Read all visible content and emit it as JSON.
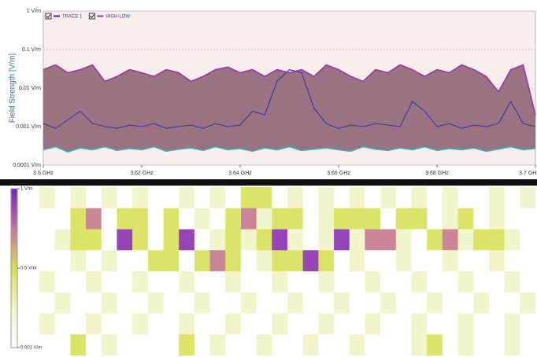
{
  "chart_data": [
    {
      "type": "line",
      "y_label": "Field Strength [V/m]",
      "log_y": true,
      "grid": true,
      "xlim": [
        3.6,
        3.7
      ],
      "xticks": [
        {
          "value": 3.6,
          "label": "3.6 GHz"
        },
        {
          "value": 3.62,
          "label": "3.62 GHz"
        },
        {
          "value": 3.64,
          "label": "3.64 GHz"
        },
        {
          "value": 3.66,
          "label": "3.66 GHz"
        },
        {
          "value": 3.68,
          "label": "3.68 GHz"
        },
        {
          "value": 3.7,
          "label": "3.7 GHz"
        }
      ],
      "ylim": [
        0.0001,
        1
      ],
      "yticks": [
        {
          "value": 1,
          "label": "1 V/m"
        },
        {
          "value": 0.1,
          "label": "0.1 V/m"
        },
        {
          "value": 0.01,
          "label": "0.01 V/m"
        },
        {
          "value": 0.001,
          "label": "0.001 V/m"
        },
        {
          "value": 0.0001,
          "label": "0.0001 V/m"
        }
      ],
      "x": [
        3.6,
        3.6025,
        3.605,
        3.6075,
        3.61,
        3.6125,
        3.615,
        3.6175,
        3.62,
        3.6225,
        3.625,
        3.6275,
        3.63,
        3.6325,
        3.635,
        3.6375,
        3.64,
        3.6425,
        3.645,
        3.6475,
        3.65,
        3.6525,
        3.655,
        3.6575,
        3.66,
        3.6625,
        3.665,
        3.6675,
        3.67,
        3.6725,
        3.675,
        3.6775,
        3.68,
        3.6825,
        3.685,
        3.6875,
        3.69,
        3.6925,
        3.695,
        3.6975,
        3.7
      ],
      "series": [
        {
          "name": "TRACE 1",
          "color": "#2f2fa8",
          "values": [
            0.0012,
            0.0009,
            0.0015,
            0.0025,
            0.0012,
            0.001,
            0.0009,
            0.0011,
            0.001,
            0.0012,
            0.0009,
            0.001,
            0.0011,
            0.0009,
            0.0012,
            0.001,
            0.0011,
            0.0025,
            0.002,
            0.015,
            0.03,
            0.025,
            0.003,
            0.0012,
            0.0009,
            0.0011,
            0.001,
            0.0012,
            0.0011,
            0.001,
            0.0045,
            0.0025,
            0.001,
            0.0012,
            0.0009,
            0.0011,
            0.001,
            0.0012,
            0.0045,
            0.0012,
            0.001
          ]
        },
        {
          "name": "HIGH-LOW",
          "color": "#9a2fa8",
          "low_color": "#2fb5b5",
          "fill": "#7a4a5e",
          "values": [
            0.03,
            0.04,
            0.025,
            0.03,
            0.04,
            0.015,
            0.02,
            0.03,
            0.025,
            0.02,
            0.03,
            0.025,
            0.015,
            0.02,
            0.03,
            0.035,
            0.025,
            0.03,
            0.02,
            0.03,
            0.025,
            0.03,
            0.02,
            0.04,
            0.03,
            0.02,
            0.015,
            0.03,
            0.025,
            0.04,
            0.03,
            0.02,
            0.03,
            0.025,
            0.04,
            0.03,
            0.02,
            0.008,
            0.03,
            0.04,
            0.002
          ],
          "low": [
            0.00025,
            0.0003,
            0.00022,
            0.00028,
            0.00025,
            0.0003,
            0.00024,
            0.00027,
            0.00025,
            0.0003,
            0.00023,
            0.00026,
            0.00028,
            0.00024,
            0.0003,
            0.00025,
            0.00027,
            0.00023,
            0.00028,
            0.00025,
            0.0003,
            0.00024,
            0.00026,
            0.00028,
            0.00025,
            0.00023,
            0.0003,
            0.00026,
            0.00024,
            0.00028,
            0.00025,
            0.0003,
            0.00024,
            0.00027,
            0.00025,
            0.00028,
            0.00023,
            0.00026,
            0.0003,
            0.00025,
            0.00027
          ]
        }
      ]
    },
    {
      "type": "heatmap",
      "zlim": [
        0.001,
        1
      ],
      "zticks": [
        {
          "value": 1,
          "label": "1 V/m"
        },
        {
          "value": 0.5,
          "label": "0.5 V/m"
        },
        {
          "value": 0.001,
          "label": "0.001 V/m"
        }
      ],
      "colors": [
        "#ffffff",
        "#f0f4c6",
        "#d6e04e",
        "#c873a6",
        "#7422c6"
      ],
      "values": [
        [
          0.05,
          0,
          0.05,
          0,
          0.05,
          0,
          0.05,
          0,
          0,
          0.05,
          0,
          0.05,
          0,
          0.2,
          0.2,
          0,
          0.05,
          0,
          0.05,
          0,
          0.05,
          0,
          0.05,
          0,
          0.05,
          0,
          0.05,
          0,
          0,
          0.05,
          0,
          0.05
        ],
        [
          0,
          0,
          0.2,
          0.5,
          0,
          0.2,
          0.2,
          0,
          0.2,
          0,
          0.05,
          0,
          0.2,
          0.5,
          0.05,
          0.2,
          0.2,
          0,
          0.05,
          0.2,
          0.2,
          0.2,
          0,
          0.2,
          0.2,
          0,
          0.05,
          0.2,
          0,
          0.05,
          0,
          0
        ],
        [
          0,
          0.05,
          0.2,
          0.2,
          0,
          0.8,
          0.2,
          0,
          0.2,
          0.8,
          0,
          0.05,
          0.2,
          0.05,
          0.2,
          0.8,
          0.05,
          0,
          0.05,
          0.8,
          0.05,
          0.5,
          0.5,
          0.05,
          0,
          0.2,
          0.5,
          0.05,
          0.2,
          0.2,
          0.05,
          0
        ],
        [
          0,
          0,
          0.05,
          0,
          0.05,
          0,
          0,
          0.2,
          0.2,
          0,
          0.2,
          0.5,
          0.2,
          0,
          0.05,
          0.2,
          0.2,
          0.8,
          0.2,
          0,
          0.05,
          0,
          0,
          0.05,
          0,
          0,
          0.05,
          0,
          0,
          0.05,
          0,
          0
        ],
        [
          0.05,
          0,
          0,
          0.05,
          0,
          0,
          0.05,
          0,
          0,
          0.05,
          0,
          0,
          0.05,
          0,
          0,
          0.05,
          0,
          0,
          0.05,
          0,
          0,
          0.05,
          0,
          0,
          0.05,
          0,
          0,
          0.05,
          0,
          0,
          0.05,
          0
        ],
        [
          0,
          0.05,
          0,
          0,
          0.05,
          0,
          0,
          0.05,
          0,
          0,
          0.05,
          0,
          0,
          0.05,
          0,
          0,
          0.05,
          0,
          0,
          0.05,
          0,
          0,
          0.05,
          0,
          0,
          0.05,
          0,
          0,
          0.05,
          0,
          0,
          0.05
        ],
        [
          0.05,
          0,
          0,
          0.05,
          0,
          0,
          0.05,
          0,
          0,
          0.05,
          0,
          0,
          0.05,
          0,
          0,
          0.05,
          0,
          0,
          0.05,
          0,
          0,
          0.05,
          0,
          0,
          0.05,
          0,
          0,
          0.05,
          0,
          0,
          0.05,
          0
        ],
        [
          0,
          0,
          0.2,
          0,
          0.05,
          0,
          0,
          0,
          0,
          0.2,
          0,
          0.05,
          0,
          0,
          0.05,
          0,
          0,
          0.05,
          0,
          0,
          0.05,
          0,
          0,
          0,
          0.05,
          0.2,
          0,
          0.05,
          0,
          0,
          0.05,
          0
        ]
      ]
    }
  ]
}
